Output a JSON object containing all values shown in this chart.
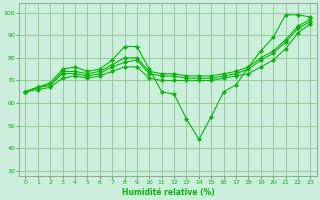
{
  "title": "",
  "xlabel": "Humidité relative (%)",
  "ylabel": "",
  "background_color": "#cceedd",
  "grid_color": "#99cc99",
  "line_color": "#00bb00",
  "xlim": [
    -0.5,
    23.5
  ],
  "ylim": [
    28,
    104
  ],
  "yticks": [
    30,
    40,
    50,
    60,
    70,
    80,
    90,
    100
  ],
  "xticks": [
    0,
    1,
    2,
    3,
    4,
    5,
    6,
    7,
    8,
    9,
    10,
    11,
    12,
    13,
    14,
    15,
    16,
    17,
    18,
    19,
    20,
    21,
    22,
    23
  ],
  "series": [
    [
      65,
      67,
      69,
      75,
      76,
      74,
      75,
      79,
      85,
      85,
      75,
      65,
      64,
      53,
      44,
      54,
      65,
      68,
      76,
      83,
      89,
      99,
      99,
      98
    ],
    [
      65,
      67,
      68,
      74,
      74,
      73,
      74,
      77,
      80,
      80,
      74,
      73,
      73,
      72,
      72,
      72,
      73,
      74,
      76,
      80,
      83,
      88,
      94,
      97
    ],
    [
      65,
      67,
      68,
      73,
      73,
      72,
      73,
      76,
      78,
      79,
      73,
      72,
      72,
      71,
      71,
      71,
      72,
      73,
      75,
      79,
      82,
      87,
      93,
      96
    ],
    [
      65,
      66,
      67,
      71,
      72,
      71,
      72,
      74,
      76,
      76,
      71,
      70,
      70,
      70,
      70,
      70,
      71,
      72,
      73,
      76,
      79,
      84,
      91,
      95
    ]
  ]
}
